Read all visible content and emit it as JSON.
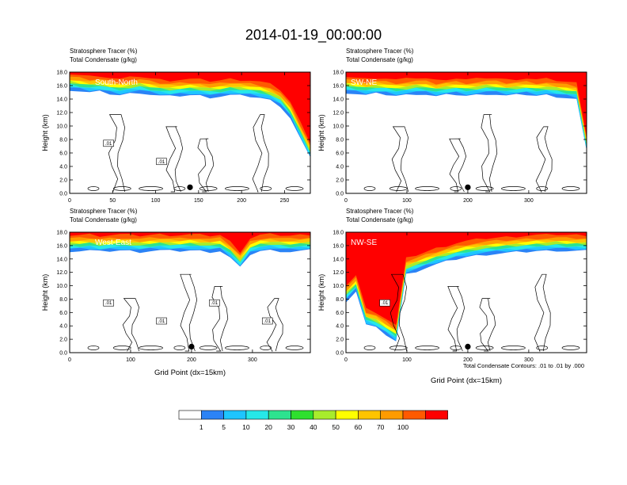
{
  "page_title": "2014-01-19_00:00:00",
  "palette": [
    "#ffffff",
    "#2b83f6",
    "#1ec5ff",
    "#26e8e8",
    "#2de38f",
    "#2ee02e",
    "#a8ec2c",
    "#ffff00",
    "#ffc400",
    "#ff9b00",
    "#ff5a00",
    "#ff0000"
  ],
  "colorbar_labels": [
    "1",
    "5",
    "10",
    "20",
    "30",
    "40",
    "50",
    "60",
    "70",
    "100"
  ],
  "footnote": "Total Condensate Contours: .01 to .01 by .000",
  "chart_data": [
    {
      "type": "heatmap",
      "title": "South-North",
      "header_lines": [
        "Stratosphere Tracer   (%)",
        "Total Condensate   (g/kg)"
      ],
      "ylabel": "Height (km)",
      "xlabel": "",
      "ylim": [
        0,
        18
      ],
      "xlim": [
        0,
        280
      ],
      "yticks": [
        "0.0",
        "2.0",
        "4.0",
        "6.0",
        "8.0",
        "10.0",
        "12.0",
        "14.0",
        "16.0",
        "18.0"
      ],
      "xticks": [
        0,
        50,
        100,
        150,
        200,
        250
      ],
      "contour_labels": [
        ".01",
        ".01"
      ],
      "marker_x": 140,
      "tracer_top_km": [
        15.2,
        15.0,
        14.8,
        14.9,
        14.6,
        14.4,
        14.6,
        14.8,
        14.5,
        14.3,
        14.2,
        14.3,
        14.4,
        14.3,
        14.1,
        14.2,
        14.4,
        14.3,
        14.2,
        14.0,
        13.6,
        12.8,
        11.0,
        8.0,
        5.0
      ]
    },
    {
      "type": "heatmap",
      "title": "SW-NE",
      "header_lines": [
        "Stratosphere Tracer   (%)",
        "Total Condensate   (g/kg)"
      ],
      "ylabel": "Height (km)",
      "xlabel": "",
      "ylim": [
        0,
        18
      ],
      "xlim": [
        0,
        395
      ],
      "yticks": [
        "0.0",
        "2.0",
        "4.0",
        "6.0",
        "8.0",
        "10.0",
        "12.0",
        "14.0",
        "16.0",
        "18.0"
      ],
      "xticks": [
        0,
        100,
        200,
        300
      ],
      "contour_labels": [],
      "marker_x": 200,
      "tracer_top_km": [
        14.8,
        14.6,
        14.4,
        14.6,
        14.5,
        14.3,
        14.4,
        14.6,
        14.5,
        14.2,
        14.4,
        14.5,
        14.3,
        14.4,
        14.6,
        14.5,
        14.3,
        14.4,
        14.5,
        14.3,
        14.4,
        14.2,
        14.0,
        13.8,
        6.0
      ]
    },
    {
      "type": "heatmap",
      "title": "West-East",
      "header_lines": [
        "Stratosphere Tracer   (%)",
        "Total Condensate   (g/kg)"
      ],
      "ylabel": "Height (km)",
      "xlabel": "Grid Point (dx=15km)",
      "ylim": [
        0,
        18
      ],
      "xlim": [
        0,
        395
      ],
      "yticks": [
        "0.0",
        "2.0",
        "4.0",
        "6.0",
        "8.0",
        "10.0",
        "12.0",
        "14.0",
        "16.0",
        "18.0"
      ],
      "xticks": [
        0,
        100,
        200,
        300
      ],
      "contour_labels": [
        ".01",
        ".01",
        ".01",
        ".01"
      ],
      "marker_x": 200,
      "tracer_top_km": [
        15.0,
        15.0,
        15.1,
        14.9,
        15.0,
        15.1,
        15.0,
        14.9,
        15.0,
        15.1,
        15.0,
        15.0,
        15.1,
        15.0,
        14.9,
        15.0,
        14.0,
        12.5,
        14.5,
        15.0,
        15.1,
        15.0,
        14.9,
        15.0,
        15.1
      ]
    },
    {
      "type": "heatmap",
      "title": "NW-SE",
      "header_lines": [
        "Stratosphere Tracer   (%)",
        "Total Condensate   (g/kg)"
      ],
      "ylabel": "Height (km)",
      "xlabel": "Grid Point (dx=15km)",
      "ylim": [
        0,
        18
      ],
      "xlim": [
        0,
        395
      ],
      "yticks": [
        "0.0",
        "2.0",
        "4.0",
        "6.0",
        "8.0",
        "10.0",
        "12.0",
        "14.0",
        "16.0",
        "18.0"
      ],
      "xticks": [
        0,
        100,
        200,
        300
      ],
      "contour_labels": [
        ".01"
      ],
      "marker_x": 200,
      "tracer_top_km": [
        7.5,
        9.0,
        4.0,
        3.5,
        2.5,
        1.5,
        11.5,
        12.0,
        12.5,
        13.0,
        13.4,
        13.8,
        14.1,
        14.3,
        14.5,
        14.6,
        14.7,
        14.8,
        14.9,
        15.0,
        15.0,
        15.1,
        15.0,
        15.0,
        15.0
      ]
    }
  ]
}
